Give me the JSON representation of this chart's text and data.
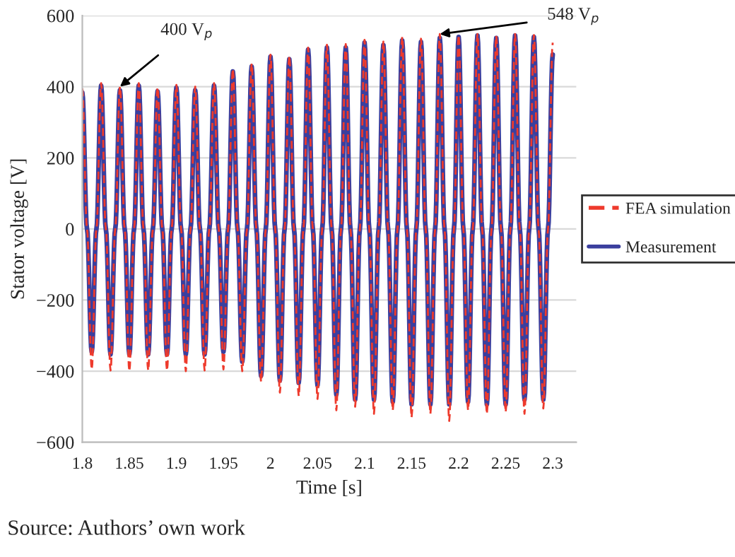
{
  "chart_data": {
    "type": "line",
    "xlabel": "Time [s]",
    "ylabel": "Stator voltage [V]",
    "x": [
      1.8,
      1.805,
      1.81,
      1.815,
      1.82,
      1.825,
      1.83,
      1.835,
      1.84,
      1.845,
      1.85,
      1.855,
      1.86,
      1.865,
      1.87,
      1.875,
      1.88,
      1.885,
      1.89,
      1.895,
      1.9,
      1.905,
      1.91,
      1.915,
      1.92,
      1.925,
      1.93,
      1.935,
      1.94,
      1.945,
      1.95,
      1.955,
      1.96,
      1.965,
      1.97,
      1.975,
      1.98,
      1.985,
      1.99,
      1.995,
      2,
      2.005,
      2.01,
      2.015,
      2.02,
      2.025,
      2.03,
      2.035,
      2.04,
      2.045,
      2.05,
      2.055,
      2.06,
      2.065,
      2.07,
      2.075,
      2.08,
      2.085,
      2.09,
      2.095,
      2.1,
      2.105,
      2.11,
      2.115,
      2.12,
      2.125,
      2.13,
      2.135,
      2.14,
      2.145,
      2.15,
      2.155,
      2.16,
      2.165,
      2.17,
      2.175,
      2.18,
      2.185,
      2.19,
      2.195,
      2.2,
      2.205,
      2.21,
      2.215,
      2.22,
      2.225,
      2.23,
      2.235,
      2.24,
      2.245,
      2.25,
      2.255,
      2.26,
      2.265,
      2.27,
      2.275,
      2.28,
      2.285,
      2.29,
      2.295,
      2.3
    ],
    "series": [
      {
        "name": "Measurement",
        "color": "#3b3f9e",
        "line_style": "solid",
        "values": [
          383,
          0,
          -346,
          0,
          403,
          0,
          -353,
          0,
          390,
          0,
          -353,
          0,
          403,
          0,
          -353,
          0,
          387,
          0,
          -353,
          0,
          397,
          0,
          -353,
          0,
          390,
          0,
          -353,
          0,
          403,
          0,
          -346,
          0,
          443,
          0,
          -373,
          0,
          457,
          0,
          -413,
          0,
          484,
          0,
          -426,
          0,
          477,
          0,
          -433,
          0,
          504,
          0,
          -440,
          0,
          510,
          0,
          -466,
          0,
          510,
          0,
          -480,
          0,
          524,
          0,
          -480,
          0,
          517,
          0,
          -486,
          0,
          530,
          0,
          -493,
          0,
          526,
          0,
          -493,
          0,
          537,
          0,
          -493,
          0,
          540,
          0,
          -486,
          0,
          544,
          0,
          -493,
          0,
          537,
          0,
          -493,
          0,
          544,
          0,
          -480,
          0,
          540,
          0,
          -480,
          0,
          490
        ]
      },
      {
        "name": "FEA simulation",
        "color": "#ee3a2c",
        "line_style": "dashed",
        "values": [
          395,
          0,
          -395,
          0,
          410,
          0,
          -398,
          0,
          400,
          0,
          -400,
          0,
          410,
          0,
          -398,
          0,
          398,
          0,
          -398,
          0,
          405,
          0,
          -400,
          0,
          400,
          0,
          -398,
          0,
          410,
          0,
          -395,
          0,
          450,
          0,
          -400,
          0,
          465,
          0,
          -430,
          0,
          490,
          0,
          -460,
          0,
          487,
          0,
          -470,
          0,
          510,
          0,
          -478,
          0,
          518,
          0,
          -510,
          0,
          520,
          0,
          -500,
          0,
          532,
          0,
          -520,
          0,
          527,
          0,
          -510,
          0,
          540,
          0,
          -530,
          0,
          535,
          0,
          -520,
          0,
          548,
          0,
          -540,
          0,
          545,
          0,
          -510,
          0,
          548,
          0,
          -520,
          0,
          543,
          0,
          -515,
          0,
          548,
          0,
          -520,
          0,
          545,
          0,
          -505,
          0,
          524
        ]
      }
    ],
    "xlim": [
      1.8,
      2.325
    ],
    "xticks": [
      1.8,
      1.85,
      1.9,
      1.95,
      2,
      2.05,
      2.1,
      2.15,
      2.2,
      2.25,
      2.3
    ],
    "ylim": [
      -600,
      600
    ],
    "yticks": [
      {
        "value": -600,
        "label": "−600"
      },
      {
        "value": -400,
        "label": "−400"
      },
      {
        "value": -200,
        "label": "−200"
      },
      0,
      200,
      400,
      600
    ],
    "grid": "y",
    "legend": "right",
    "annotations": [
      {
        "text": "400 V$_{p}$",
        "x": 1.84,
        "y": 400
      },
      {
        "text": "548 V$_{p}$",
        "x": 2.18,
        "y": 548
      },
      "Source: Authors’ own work"
    ]
  }
}
